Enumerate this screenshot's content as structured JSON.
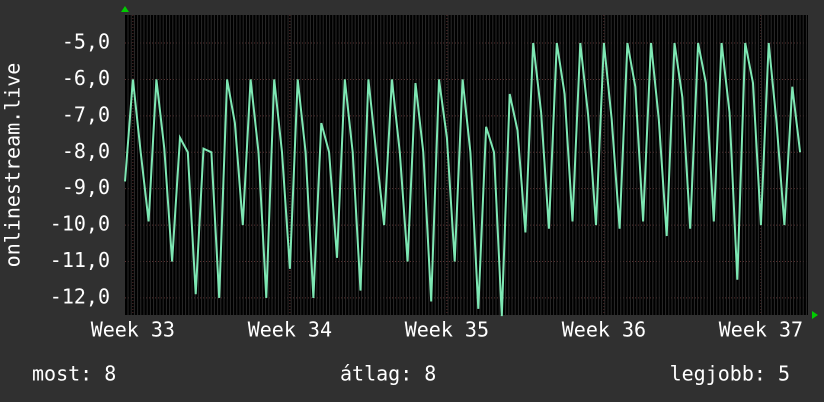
{
  "chart_data": {
    "type": "line",
    "y_label": "onlinestream.live",
    "x": [
      32.95,
      33,
      33.05,
      33.1,
      33.15,
      33.2,
      33.25,
      33.3,
      33.35,
      33.4,
      33.45,
      33.5,
      33.55,
      33.6,
      33.65,
      33.7,
      33.75,
      33.8,
      33.85,
      33.9,
      33.95,
      34,
      34.05,
      34.1,
      34.15,
      34.2,
      34.25,
      34.3,
      34.35,
      34.4,
      34.45,
      34.5,
      34.55,
      34.6,
      34.65,
      34.7,
      34.75,
      34.8,
      34.85,
      34.9,
      34.95,
      35,
      35.05,
      35.1,
      35.15,
      35.2,
      35.25,
      35.3,
      35.35,
      35.4,
      35.45,
      35.5,
      35.55,
      35.6,
      35.65,
      35.7,
      35.75,
      35.8,
      35.85,
      35.9,
      35.95,
      36,
      36.05,
      36.1,
      36.15,
      36.2,
      36.25,
      36.3,
      36.35,
      36.4,
      36.45,
      36.5,
      36.55,
      36.6,
      36.65,
      36.7,
      36.75,
      36.8,
      36.85,
      36.9,
      36.95,
      37,
      37.05,
      37.1,
      37.15,
      37.2,
      37.25
    ],
    "series": [
      {
        "color": "#7ee8b4",
        "values": [
          -8.8,
          -6.0,
          -8.0,
          -9.9,
          -6.0,
          -7.9,
          -11.0,
          -7.6,
          -8.0,
          -11.9,
          -7.9,
          -8.0,
          -12.0,
          -6.0,
          -7.2,
          -10.0,
          -6.0,
          -8.0,
          -12.0,
          -6.0,
          -8.0,
          -11.2,
          -6.0,
          -8.0,
          -12.0,
          -7.2,
          -8.0,
          -10.9,
          -6.0,
          -8.0,
          -11.8,
          -6.0,
          -8.0,
          -10.0,
          -6.0,
          -8.0,
          -11.0,
          -6.1,
          -8.0,
          -12.1,
          -6.0,
          -7.6,
          -11.0,
          -6.0,
          -8.0,
          -12.3,
          -7.3,
          -8.0,
          -12.5,
          -6.4,
          -7.4,
          -10.2,
          -5.0,
          -6.9,
          -10.1,
          -5.0,
          -6.4,
          -9.9,
          -5.0,
          -7.0,
          -10.0,
          -5.0,
          -7.1,
          -10.1,
          -5.0,
          -6.2,
          -9.9,
          -5.0,
          -7.1,
          -10.3,
          -5.0,
          -6.5,
          -10.1,
          -5.0,
          -6.1,
          -9.9,
          -5.0,
          -6.9,
          -11.5,
          -5.0,
          -6.1,
          -10.0,
          -5.0,
          -7.2,
          -10.0,
          -6.2,
          -8.0
        ]
      }
    ],
    "xlim": [
      32.95,
      37.3
    ],
    "xticks": [
      {
        "value": 33,
        "label": "Week 33"
      },
      {
        "value": 34,
        "label": "Week 34"
      },
      {
        "value": 35,
        "label": "Week 35"
      },
      {
        "value": 36,
        "label": "Week 36"
      },
      {
        "value": 37,
        "label": "Week 37"
      }
    ],
    "ylim": [
      -12.47,
      -4.23
    ],
    "yticks": [
      {
        "value": -12,
        "label": "-12,0"
      },
      {
        "value": -11,
        "label": "-11,0"
      },
      {
        "value": -10,
        "label": "-10,0"
      },
      {
        "value": -9,
        "label": "-9,0"
      },
      {
        "value": -8,
        "label": "-8,0"
      },
      {
        "value": -7,
        "label": "-7,0"
      },
      {
        "value": -6,
        "label": "-6,0"
      },
      {
        "value": -5,
        "label": "-5,0"
      }
    ],
    "grid": true,
    "footer": [
      "most: 8",
      "átlag: 8",
      "legjobb: 5"
    ]
  }
}
